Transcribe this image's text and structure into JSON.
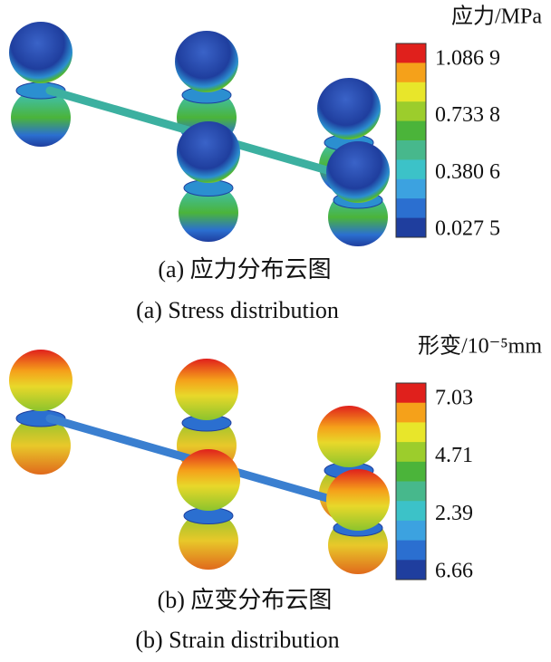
{
  "panels": [
    {
      "legend": {
        "title": "应力/MPa",
        "ticks": [
          "1.086 9",
          "0.733 8",
          "0.380 6",
          "0.027 5"
        ],
        "colors": [
          "#e0201c",
          "#f5a11a",
          "#e8e62a",
          "#9ccd2c",
          "#4bb43a",
          "#47b88c",
          "#3cc2c8",
          "#3ca2e0",
          "#2b6fd0",
          "#1f3e9e"
        ]
      },
      "caption_cn": "(a) 应力分布云图",
      "caption_en": "(a) Stress distribution"
    },
    {
      "legend": {
        "title": "形变/10⁻⁵mm",
        "ticks": [
          "7.03",
          "4.71",
          "2.39",
          "6.66"
        ],
        "colors": [
          "#e0201c",
          "#f5a11a",
          "#e8e62a",
          "#9ccd2c",
          "#4bb43a",
          "#47b88c",
          "#3cc2c8",
          "#3ca2e0",
          "#2b6fd0",
          "#1f3e9e"
        ]
      },
      "caption_cn": "(b) 应变分布云图",
      "caption_en": "(b) Strain distribution"
    }
  ]
}
